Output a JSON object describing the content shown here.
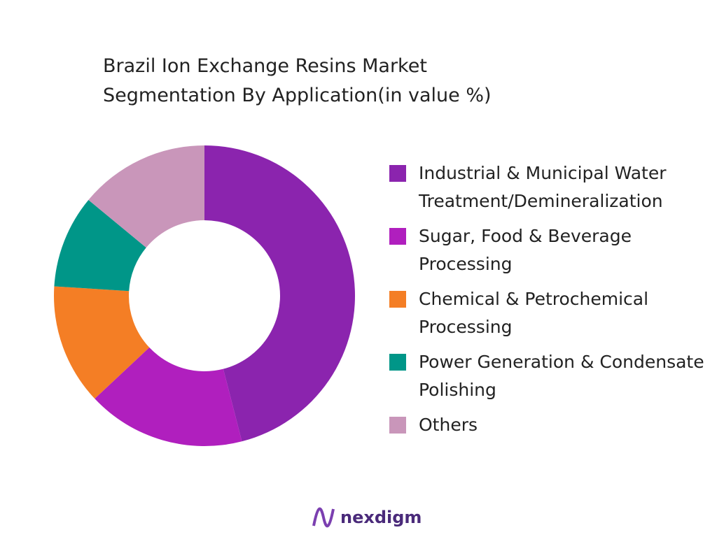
{
  "chart_data": {
    "type": "donut",
    "title": "Brazil Ion Exchange Resins Market Segmentation By Application(in value %)",
    "categories": [
      "Industrial & Municipal Water Treatment/Demineralization",
      "Sugar, Food & Beverage Processing",
      "Chemical & Petrochemical Processing",
      "Power Generation & Condensate Polishing",
      "Others"
    ],
    "values": [
      46,
      17,
      13,
      10,
      14
    ],
    "colors": [
      "#8b24ae",
      "#b01fbe",
      "#f47e25",
      "#009688",
      "#c996ba"
    ]
  },
  "logo": "nexdigm"
}
